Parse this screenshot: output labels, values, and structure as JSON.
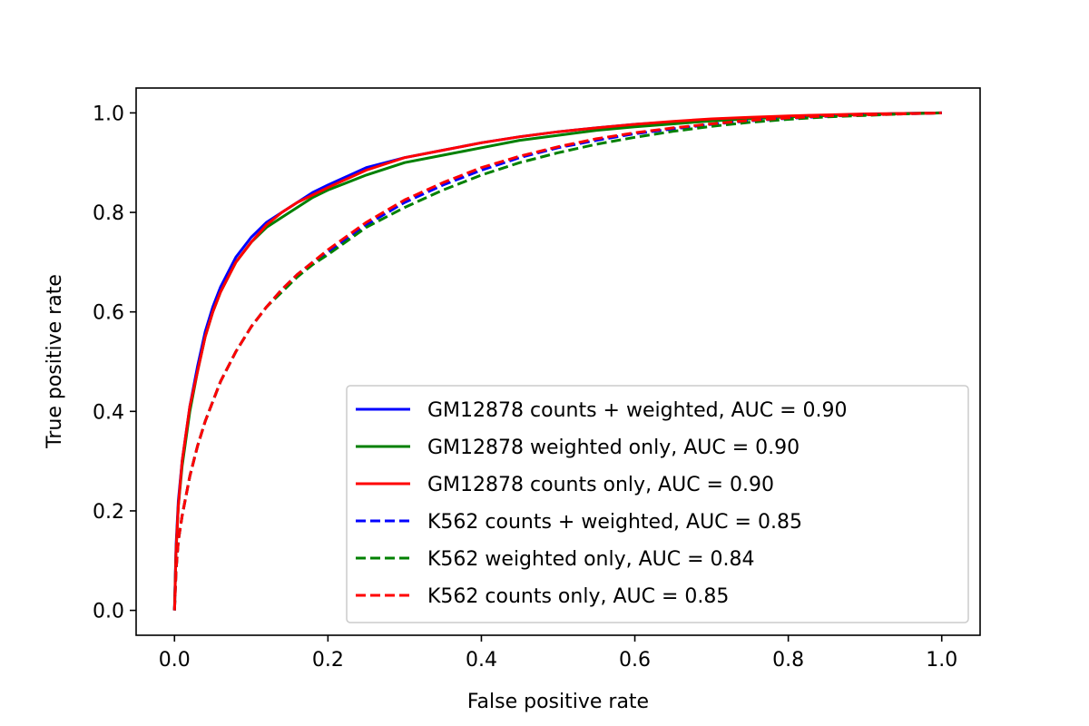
{
  "chart_data": {
    "type": "line",
    "title": "",
    "xlabel": "False positive rate",
    "ylabel": "True positive rate",
    "xlim": [
      -0.05,
      1.05
    ],
    "ylim": [
      -0.05,
      1.05
    ],
    "xticks": [
      0.0,
      0.2,
      0.4,
      0.6,
      0.8,
      1.0
    ],
    "yticks": [
      0.0,
      0.2,
      0.4,
      0.6,
      0.8,
      1.0
    ],
    "xtick_labels": [
      "0.0",
      "0.2",
      "0.4",
      "0.6",
      "0.8",
      "1.0"
    ],
    "ytick_labels": [
      "0.0",
      "0.2",
      "0.4",
      "0.6",
      "0.8",
      "1.0"
    ],
    "grid": false,
    "legend_position": "lower-right",
    "series": [
      {
        "name": "GM12878 counts + weighted, AUC = 0.90",
        "color": "#0000ff",
        "dash": "solid",
        "x": [
          0,
          0.002,
          0.005,
          0.01,
          0.02,
          0.03,
          0.04,
          0.05,
          0.06,
          0.08,
          0.1,
          0.12,
          0.14,
          0.16,
          0.18,
          0.2,
          0.25,
          0.3,
          0.35,
          0.4,
          0.45,
          0.5,
          0.55,
          0.6,
          0.65,
          0.7,
          0.75,
          0.8,
          0.85,
          0.9,
          0.95,
          1.0
        ],
        "y": [
          0,
          0.13,
          0.22,
          0.3,
          0.41,
          0.49,
          0.56,
          0.61,
          0.65,
          0.71,
          0.75,
          0.78,
          0.8,
          0.82,
          0.84,
          0.855,
          0.89,
          0.91,
          0.925,
          0.94,
          0.952,
          0.962,
          0.97,
          0.977,
          0.982,
          0.987,
          0.99,
          0.993,
          0.995,
          0.997,
          0.999,
          1.0
        ]
      },
      {
        "name": "GM12878 weighted only, AUC = 0.90",
        "color": "#008000",
        "dash": "solid",
        "x": [
          0,
          0.002,
          0.005,
          0.01,
          0.02,
          0.03,
          0.04,
          0.05,
          0.06,
          0.08,
          0.1,
          0.12,
          0.14,
          0.16,
          0.18,
          0.2,
          0.25,
          0.3,
          0.35,
          0.4,
          0.45,
          0.5,
          0.55,
          0.6,
          0.65,
          0.7,
          0.75,
          0.8,
          0.85,
          0.9,
          0.95,
          1.0
        ],
        "y": [
          0,
          0.12,
          0.21,
          0.29,
          0.4,
          0.48,
          0.55,
          0.6,
          0.64,
          0.7,
          0.74,
          0.77,
          0.79,
          0.81,
          0.83,
          0.845,
          0.875,
          0.9,
          0.915,
          0.93,
          0.945,
          0.955,
          0.965,
          0.972,
          0.978,
          0.984,
          0.988,
          0.992,
          0.995,
          0.997,
          0.999,
          1.0
        ]
      },
      {
        "name": "GM12878 counts only, AUC = 0.90",
        "color": "#ff0000",
        "dash": "solid",
        "x": [
          0,
          0.002,
          0.005,
          0.01,
          0.02,
          0.03,
          0.04,
          0.05,
          0.06,
          0.08,
          0.1,
          0.12,
          0.14,
          0.16,
          0.18,
          0.2,
          0.25,
          0.3,
          0.35,
          0.4,
          0.45,
          0.5,
          0.55,
          0.6,
          0.65,
          0.7,
          0.75,
          0.8,
          0.85,
          0.9,
          0.95,
          1.0
        ],
        "y": [
          0,
          0.12,
          0.21,
          0.3,
          0.41,
          0.48,
          0.55,
          0.6,
          0.64,
          0.7,
          0.74,
          0.775,
          0.8,
          0.82,
          0.835,
          0.85,
          0.885,
          0.91,
          0.925,
          0.94,
          0.952,
          0.962,
          0.97,
          0.977,
          0.983,
          0.988,
          0.991,
          0.994,
          0.996,
          0.998,
          0.999,
          1.0
        ]
      },
      {
        "name": "K562 counts + weighted, AUC = 0.85",
        "color": "#0000ff",
        "dash": "dashed",
        "x": [
          0,
          0.002,
          0.005,
          0.01,
          0.02,
          0.03,
          0.04,
          0.05,
          0.06,
          0.08,
          0.1,
          0.12,
          0.14,
          0.16,
          0.18,
          0.2,
          0.25,
          0.3,
          0.35,
          0.4,
          0.45,
          0.5,
          0.55,
          0.6,
          0.65,
          0.7,
          0.75,
          0.8,
          0.85,
          0.9,
          0.95,
          1.0
        ],
        "y": [
          0,
          0.08,
          0.14,
          0.19,
          0.27,
          0.33,
          0.38,
          0.42,
          0.46,
          0.52,
          0.57,
          0.61,
          0.645,
          0.675,
          0.7,
          0.72,
          0.775,
          0.82,
          0.855,
          0.885,
          0.91,
          0.93,
          0.945,
          0.958,
          0.968,
          0.977,
          0.984,
          0.989,
          0.993,
          0.996,
          0.998,
          1.0
        ]
      },
      {
        "name": "K562 weighted only, AUC = 0.84",
        "color": "#008000",
        "dash": "dashed",
        "x": [
          0,
          0.002,
          0.005,
          0.01,
          0.02,
          0.03,
          0.04,
          0.05,
          0.06,
          0.08,
          0.1,
          0.12,
          0.14,
          0.16,
          0.18,
          0.2,
          0.25,
          0.3,
          0.35,
          0.4,
          0.45,
          0.5,
          0.55,
          0.6,
          0.65,
          0.7,
          0.75,
          0.8,
          0.85,
          0.9,
          0.95,
          1.0
        ],
        "y": [
          0,
          0.08,
          0.14,
          0.19,
          0.27,
          0.33,
          0.38,
          0.42,
          0.46,
          0.52,
          0.57,
          0.61,
          0.64,
          0.67,
          0.695,
          0.715,
          0.77,
          0.81,
          0.845,
          0.875,
          0.9,
          0.92,
          0.937,
          0.951,
          0.963,
          0.973,
          0.981,
          0.987,
          0.992,
          0.995,
          0.998,
          1.0
        ]
      },
      {
        "name": "K562 counts only, AUC = 0.85",
        "color": "#ff0000",
        "dash": "dashed",
        "x": [
          0,
          0.002,
          0.005,
          0.01,
          0.02,
          0.03,
          0.04,
          0.05,
          0.06,
          0.08,
          0.1,
          0.12,
          0.14,
          0.16,
          0.18,
          0.2,
          0.25,
          0.3,
          0.35,
          0.4,
          0.45,
          0.5,
          0.55,
          0.6,
          0.65,
          0.7,
          0.75,
          0.8,
          0.85,
          0.9,
          0.95,
          1.0
        ],
        "y": [
          0,
          0.08,
          0.14,
          0.19,
          0.27,
          0.33,
          0.38,
          0.42,
          0.46,
          0.52,
          0.57,
          0.61,
          0.645,
          0.675,
          0.7,
          0.725,
          0.78,
          0.825,
          0.86,
          0.89,
          0.913,
          0.932,
          0.948,
          0.96,
          0.97,
          0.978,
          0.985,
          0.99,
          0.994,
          0.996,
          0.998,
          1.0
        ]
      }
    ]
  }
}
